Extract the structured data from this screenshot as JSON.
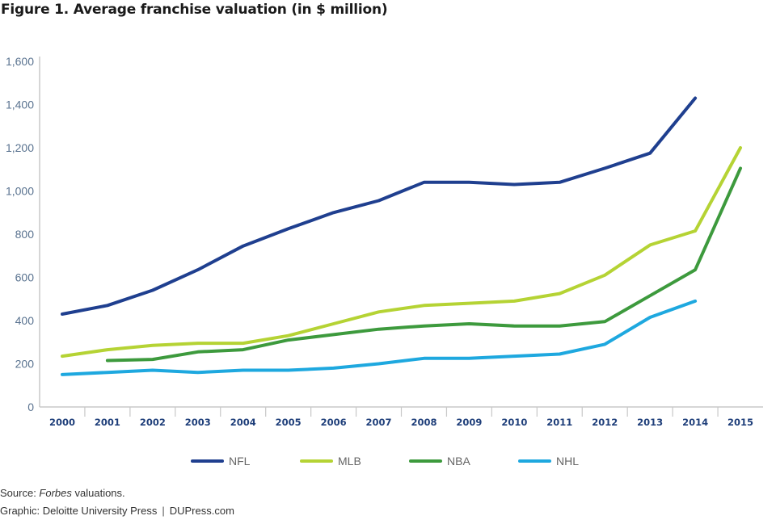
{
  "title": "Figure 1. Average franchise valuation (in $ million)",
  "chart_data": {
    "type": "line",
    "title": "Figure 1. Average franchise valuation (in $ million)",
    "xlabel": "",
    "ylabel": "",
    "ylim": [
      0,
      1600
    ],
    "yticks": [
      0,
      200,
      400,
      600,
      800,
      1000,
      1200,
      1400,
      1600
    ],
    "ytick_labels": [
      "0",
      "200",
      "400",
      "600",
      "800",
      "1,000",
      "1,200",
      "1,400",
      "1,600"
    ],
    "grid": false,
    "legend_position": "bottom-center",
    "categories": [
      "2000",
      "2001",
      "2002",
      "2003",
      "2004",
      "2005",
      "2006",
      "2007",
      "2008",
      "2009",
      "2010",
      "2011",
      "2012",
      "2013",
      "2014",
      "2015"
    ],
    "series": [
      {
        "name": "NFL",
        "color": "#1f3f8f",
        "values": [
          430,
          470,
          540,
          635,
          745,
          825,
          900,
          955,
          1040,
          1040,
          1030,
          1040,
          1105,
          1175,
          1430,
          null
        ]
      },
      {
        "name": "MLB",
        "color": "#b5d334",
        "values": [
          235,
          265,
          285,
          295,
          295,
          330,
          385,
          440,
          470,
          480,
          490,
          525,
          610,
          750,
          815,
          1200
        ]
      },
      {
        "name": "NBA",
        "color": "#3d9a3d",
        "values": [
          null,
          215,
          220,
          255,
          265,
          310,
          335,
          360,
          375,
          385,
          375,
          375,
          395,
          515,
          635,
          1105
        ]
      },
      {
        "name": "NHL",
        "color": "#1ea8df",
        "values": [
          150,
          160,
          170,
          160,
          170,
          170,
          180,
          200,
          225,
          225,
          235,
          245,
          290,
          415,
          490,
          null
        ]
      }
    ]
  },
  "footer": {
    "source_prefix": "Source: ",
    "source_italic": "Forbes",
    "source_suffix": " valuations.",
    "graphic": "Graphic: Deloitte University Press",
    "separator": "|",
    "site": "DUPress.com"
  },
  "colors": {
    "axis": "#c8c8c8",
    "tick_label": "#5a7390",
    "category_label": "#1f3f7a",
    "legend_text": "#666666"
  }
}
